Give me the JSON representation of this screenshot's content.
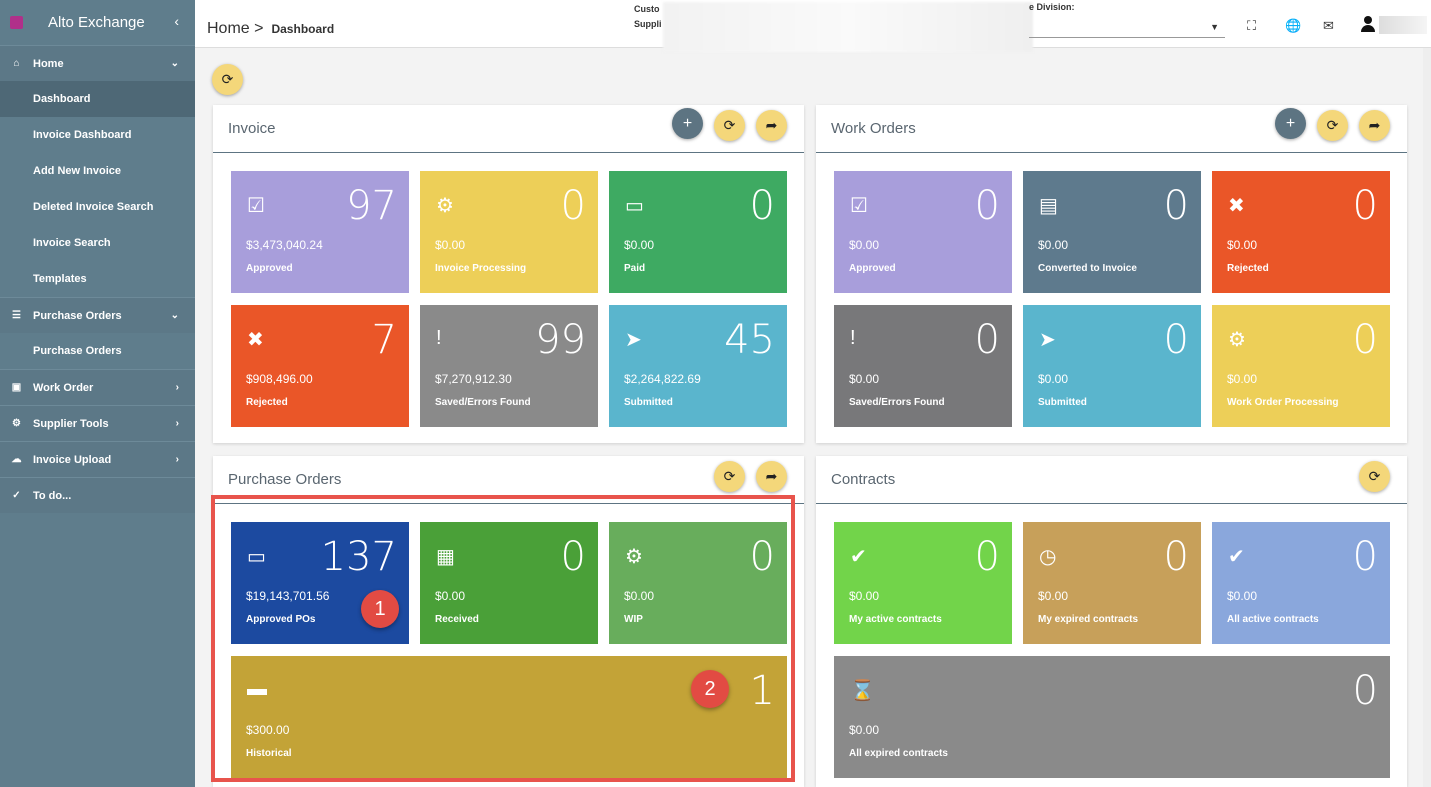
{
  "app": {
    "title": "Alto Exchange"
  },
  "sidebar": {
    "items": [
      {
        "label": "Home",
        "icon": "home-icon",
        "glyph": "⌂"
      },
      {
        "label": "Dashboard"
      },
      {
        "label": "Invoice Dashboard"
      },
      {
        "label": "Add New Invoice"
      },
      {
        "label": "Deleted Invoice Search"
      },
      {
        "label": "Invoice Search"
      },
      {
        "label": "Templates"
      },
      {
        "label": "Purchase Orders",
        "icon": "list-icon",
        "glyph": "☰"
      },
      {
        "label": "Purchase Orders"
      },
      {
        "label": "Work Order",
        "icon": "id-card-icon",
        "glyph": "▣"
      },
      {
        "label": "Supplier Tools",
        "icon": "gear-icon",
        "glyph": "⚙"
      },
      {
        "label": "Invoice Upload",
        "icon": "cloud-upload-icon",
        "glyph": "☁"
      },
      {
        "label": "To do...",
        "icon": "check-icon",
        "glyph": "✓"
      }
    ]
  },
  "header": {
    "breadcrumb_home": "Home >",
    "breadcrumb_current": "Dashboard",
    "customer_label": "Custo",
    "supplier_label": "Suppli",
    "division_label": "e Division:"
  },
  "invoice": {
    "title": "Invoice",
    "tiles": [
      {
        "count": "97",
        "amount": "$3,473,040.24",
        "label": "Approved",
        "color": "#a89edb",
        "icon": "check-square-icon",
        "glyph": "☑"
      },
      {
        "count": "0",
        "amount": "$0.00",
        "label": "Invoice Processing",
        "color": "#edcf58",
        "icon": "gears-icon",
        "glyph": "⚙"
      },
      {
        "count": "0",
        "amount": "$0.00",
        "label": "Paid",
        "color": "#3eaa62",
        "icon": "money-icon",
        "glyph": "▭"
      },
      {
        "count": "7",
        "amount": "$908,496.00",
        "label": "Rejected",
        "color": "#ea5628",
        "icon": "times-icon",
        "glyph": "✖"
      },
      {
        "count": "99",
        "amount": "$7,270,912.30",
        "label": "Saved/Errors Found",
        "color": "#8a8a8a",
        "icon": "exclamation-icon",
        "glyph": "!"
      },
      {
        "count": "45",
        "amount": "$2,264,822.69",
        "label": "Submitted",
        "color": "#5ab5cd",
        "icon": "paper-plane-icon",
        "glyph": "➤"
      }
    ]
  },
  "work_orders": {
    "title": "Work Orders",
    "tiles": [
      {
        "count": "0",
        "amount": "$0.00",
        "label": "Approved",
        "color": "#a89edb",
        "icon": "check-square-icon",
        "glyph": "☑"
      },
      {
        "count": "0",
        "amount": "$0.00",
        "label": "Converted to Invoice",
        "color": "#5e7a8d",
        "icon": "file-icon",
        "glyph": "▤"
      },
      {
        "count": "0",
        "amount": "$0.00",
        "label": "Rejected",
        "color": "#ea5628",
        "icon": "times-icon",
        "glyph": "✖"
      },
      {
        "count": "0",
        "amount": "$0.00",
        "label": "Saved/Errors Found",
        "color": "#78787a",
        "icon": "exclamation-icon",
        "glyph": "!"
      },
      {
        "count": "0",
        "amount": "$0.00",
        "label": "Submitted",
        "color": "#5ab5cd",
        "icon": "paper-plane-icon",
        "glyph": "➤"
      },
      {
        "count": "0",
        "amount": "$0.00",
        "label": "Work Order Processing",
        "color": "#edcf58",
        "icon": "gears-icon",
        "glyph": "⚙"
      }
    ]
  },
  "purchase_orders": {
    "title": "Purchase Orders",
    "tiles": [
      {
        "count": "137",
        "amount": "$19,143,701.56",
        "label": "Approved POs",
        "color": "#1c4aa0",
        "icon": "inbox-icon",
        "glyph": "▭"
      },
      {
        "count": "0",
        "amount": "$0.00",
        "label": "Received",
        "color": "#4aa038",
        "icon": "calendar-check-icon",
        "glyph": "▦"
      },
      {
        "count": "0",
        "amount": "$0.00",
        "label": "WIP",
        "color": "#68ad5c",
        "icon": "gears-icon",
        "glyph": "⚙"
      },
      {
        "count": "1",
        "amount": "$300.00",
        "label": "Historical",
        "color": "#c3a337",
        "icon": "archive-icon",
        "glyph": "▬"
      }
    ]
  },
  "contracts": {
    "title": "Contracts",
    "tiles": [
      {
        "count": "0",
        "amount": "$0.00",
        "label": "My active contracts",
        "color": "#72d44a",
        "icon": "checkmark-icon",
        "glyph": "✔"
      },
      {
        "count": "0",
        "amount": "$0.00",
        "label": "My expired contracts",
        "color": "#c7a05a",
        "icon": "clock-icon",
        "glyph": "◷"
      },
      {
        "count": "0",
        "amount": "$0.00",
        "label": "All active contracts",
        "color": "#8aa7dc",
        "icon": "check-circle-icon",
        "glyph": "✔"
      },
      {
        "count": "0",
        "amount": "$0.00",
        "label": "All expired contracts",
        "color": "#8a8a8a",
        "icon": "hourglass-icon",
        "glyph": "⌛"
      }
    ]
  },
  "markers": [
    "1",
    "2"
  ]
}
